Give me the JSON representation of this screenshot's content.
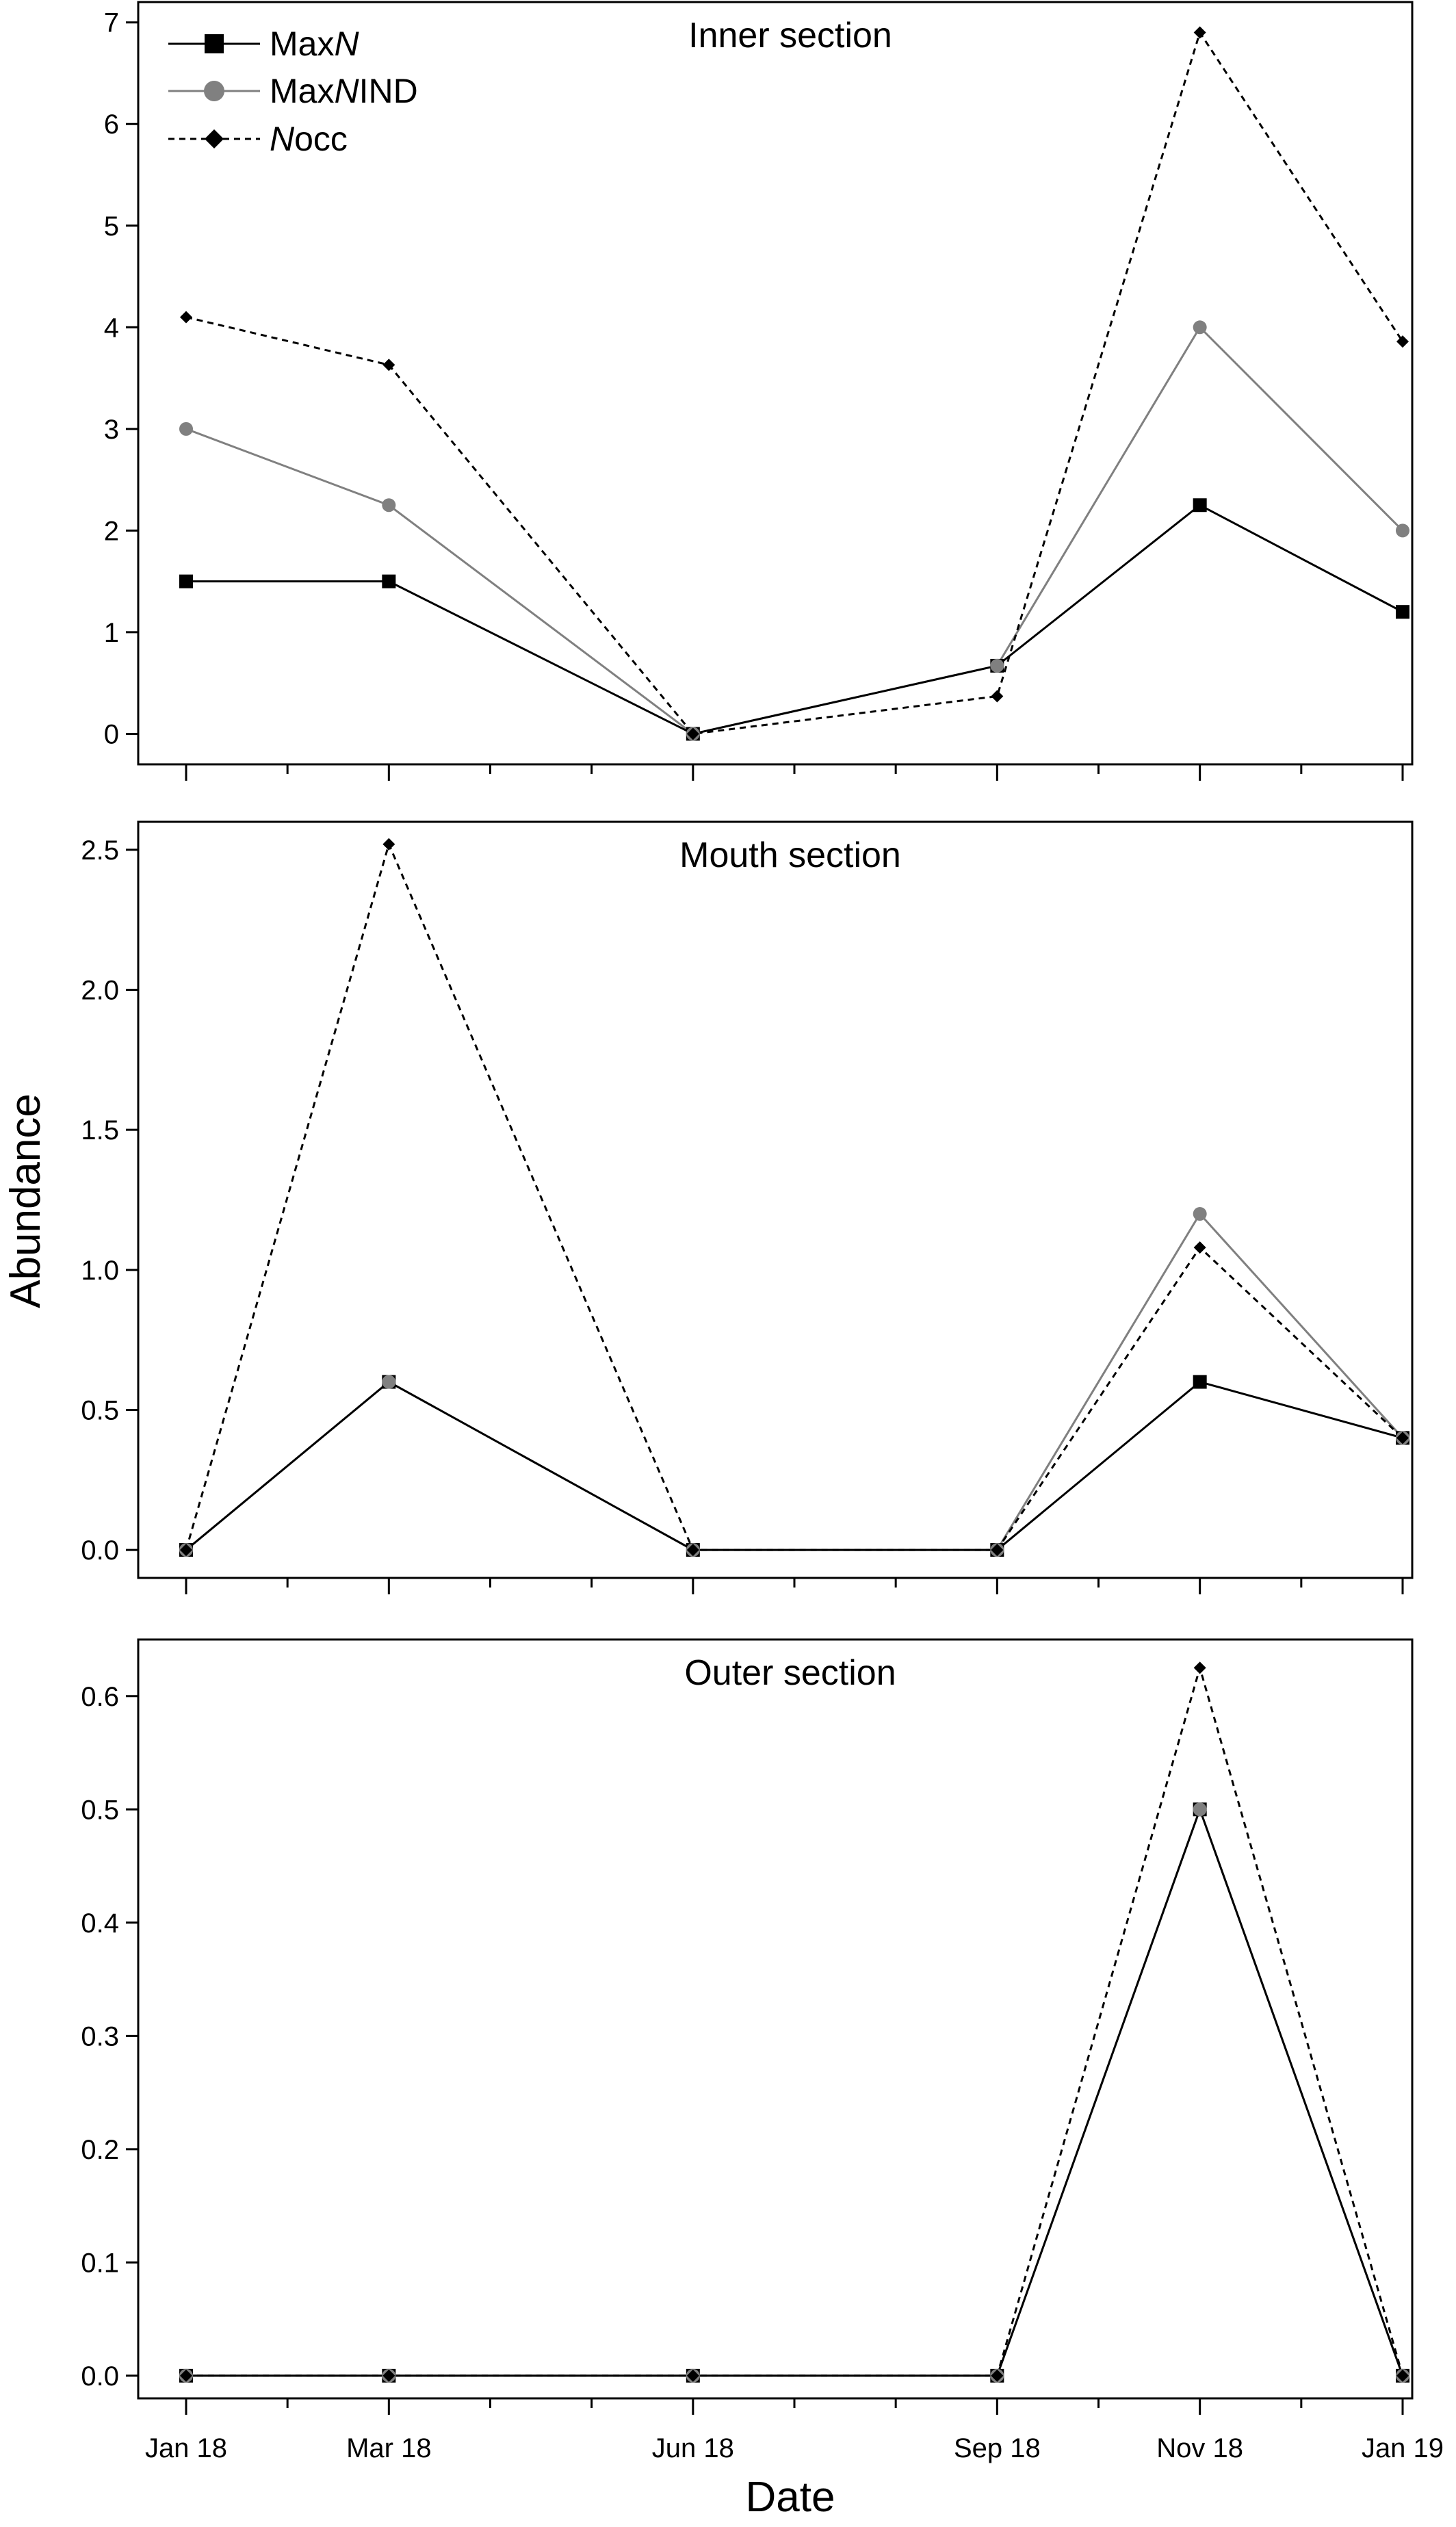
{
  "chart_data": {
    "type": "line",
    "xlabel": "Date",
    "ylabel": "Abundance",
    "x_ticks": [
      {
        "label": "Jan 18",
        "month": 0
      },
      {
        "label": "Mar 18",
        "month": 2
      },
      {
        "label": "Jun 18",
        "month": 5
      },
      {
        "label": "Sep 18",
        "month": 8
      },
      {
        "label": "Nov 18",
        "month": 10
      },
      {
        "label": "Jan 19",
        "month": 12
      }
    ],
    "x_range": [
      0,
      12
    ],
    "legend": {
      "placement": "top-left",
      "entries": [
        {
          "prefix": "Max",
          "italic": "N",
          "suffix": "",
          "series": "MaxN"
        },
        {
          "prefix": "Max",
          "italic": "N",
          "suffix": "IND",
          "series": "MaxNIND"
        },
        {
          "prefix": "",
          "italic": "N",
          "suffix": "occ",
          "series": "Nocc"
        }
      ]
    },
    "styles": {
      "MaxN": {
        "color": "#000000",
        "dash": "",
        "marker": "square"
      },
      "MaxNIND": {
        "color": "#808080",
        "dash": "",
        "marker": "circle"
      },
      "Nocc": {
        "color": "#000000",
        "dash": "9,7",
        "marker": "diamond"
      }
    },
    "panels": [
      {
        "title": "Inner section",
        "ylim": [
          -0.3,
          7.2
        ],
        "yticks": [
          0,
          1,
          2,
          3,
          4,
          5,
          6,
          7
        ],
        "ytick_labels": [
          "0",
          "1",
          "2",
          "3",
          "4",
          "5",
          "6",
          "7"
        ],
        "series": {
          "MaxN": [
            1.5,
            1.5,
            0,
            0.67,
            2.25,
            1.2
          ],
          "MaxNIND": [
            3,
            2.25,
            0,
            0.67,
            4,
            2
          ],
          "Nocc": [
            4.1,
            3.63,
            0,
            0.37,
            6.9,
            3.86
          ]
        }
      },
      {
        "title": "Mouth section",
        "ylim": [
          -0.1,
          2.6
        ],
        "yticks": [
          0,
          0.5,
          1,
          1.5,
          2,
          2.5
        ],
        "ytick_labels": [
          "0.0",
          "0.5",
          "1.0",
          "1.5",
          "2.0",
          "2.5"
        ],
        "series": {
          "MaxN": [
            0,
            0.6,
            0,
            0,
            0.6,
            0.4
          ],
          "MaxNIND": [
            0,
            0.6,
            0,
            0,
            1.2,
            0.4
          ],
          "Nocc": [
            0,
            2.52,
            0,
            0,
            1.08,
            0.4
          ]
        }
      },
      {
        "title": "Outer section",
        "ylim": [
          -0.02,
          0.65
        ],
        "yticks": [
          0,
          0.1,
          0.2,
          0.3,
          0.4,
          0.5,
          0.6
        ],
        "ytick_labels": [
          "0.0",
          "0.1",
          "0.2",
          "0.3",
          "0.4",
          "0.5",
          "0.6"
        ],
        "series": {
          "MaxN": [
            0,
            0,
            0,
            0,
            0.5,
            0
          ],
          "MaxNIND": [
            0,
            0,
            0,
            0,
            0.5,
            0
          ],
          "Nocc": [
            0,
            0,
            0,
            0,
            0.625,
            0
          ]
        }
      }
    ]
  }
}
